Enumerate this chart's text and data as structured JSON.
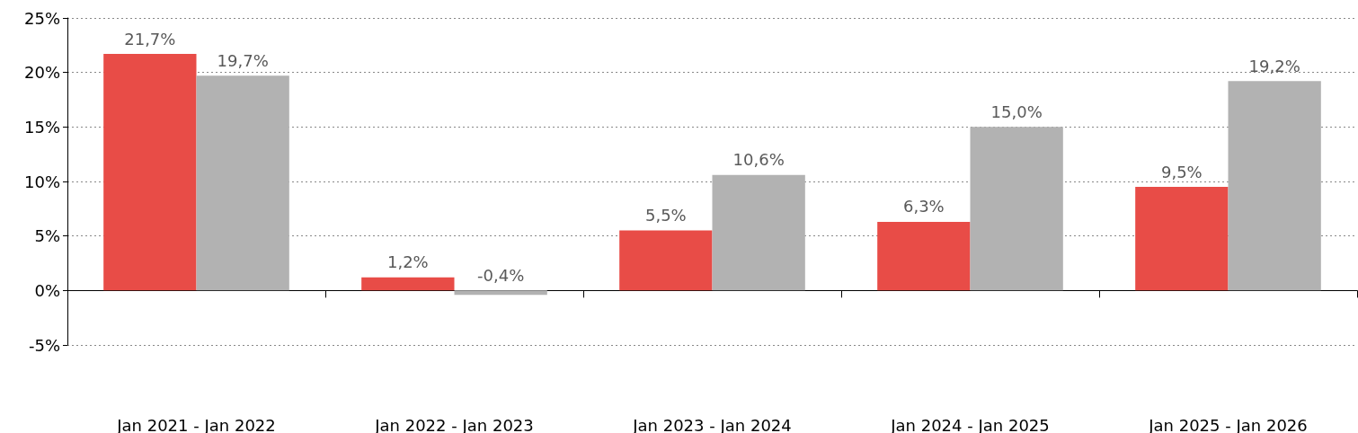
{
  "chart_data": {
    "type": "bar",
    "categories": [
      "Jan 2021 - Jan 2022",
      "Jan 2022 - Jan 2023",
      "Jan 2023 - Jan 2024",
      "Jan 2024 - Jan 2025",
      "Jan 2025 - Jan 2026"
    ],
    "series": [
      {
        "color": "#e84c47",
        "values": [
          21.7,
          1.2,
          5.5,
          6.3,
          9.5
        ],
        "value_labels": [
          "21,7%",
          "1,2%",
          "5,5%",
          "6,3%",
          "9,5%"
        ]
      },
      {
        "color": "#b2b2b2",
        "values": [
          19.7,
          -0.4,
          10.6,
          15.0,
          19.2
        ],
        "value_labels": [
          "19,7%",
          "-0,4%",
          "10,6%",
          "15,0%",
          "19,2%"
        ]
      }
    ],
    "ylim": [
      -5,
      25
    ],
    "yticks": [
      {
        "value": -5,
        "label": "-5%"
      },
      {
        "value": 0,
        "label": "0%"
      },
      {
        "value": 5,
        "label": "5%"
      },
      {
        "value": 10,
        "label": "10%"
      },
      {
        "value": 15,
        "label": "15%"
      },
      {
        "value": 20,
        "label": "20%"
      },
      {
        "value": 25,
        "label": "25%"
      }
    ],
    "grid": "y"
  }
}
